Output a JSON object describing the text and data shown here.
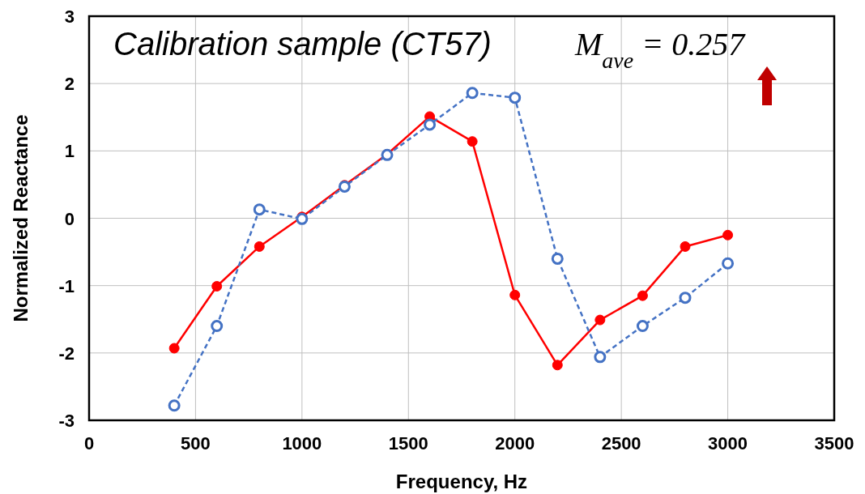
{
  "chart_data": {
    "type": "line",
    "xlabel": "Frequency, Hz",
    "ylabel": "Normalized Reactance",
    "annotations": [
      "Calibration sample (CT57)",
      "M$_{ave}$ = 0.257"
    ],
    "x": [
      400,
      600,
      800,
      1000,
      1200,
      1400,
      1600,
      1800,
      2000,
      2200,
      2400,
      2600,
      2800,
      3000
    ],
    "series": [
      {
        "color": "#ff0000",
        "line_style": "solid",
        "values": [
          -1.93,
          -1.01,
          -0.42,
          0.02,
          0.49,
          0.95,
          1.51,
          1.14,
          -1.14,
          -2.18,
          -1.51,
          -1.15,
          -0.42,
          -0.25
        ]
      },
      {
        "color": "#4472c4",
        "line_style": "dashed",
        "values": [
          -2.78,
          -1.6,
          0.13,
          -0.01,
          0.47,
          0.94,
          1.39,
          1.86,
          1.79,
          -0.6,
          -2.06,
          -1.6,
          -1.18,
          -0.67
        ]
      }
    ],
    "xlim": [
      0,
      3500
    ],
    "xticks": [
      0,
      500,
      1000,
      1500,
      2000,
      2500,
      3000,
      3500
    ],
    "ylim": [
      -3,
      3
    ],
    "yticks": [
      -3,
      -2,
      -1,
      0,
      1,
      2,
      3
    ],
    "grid": true,
    "marker": "circle"
  }
}
